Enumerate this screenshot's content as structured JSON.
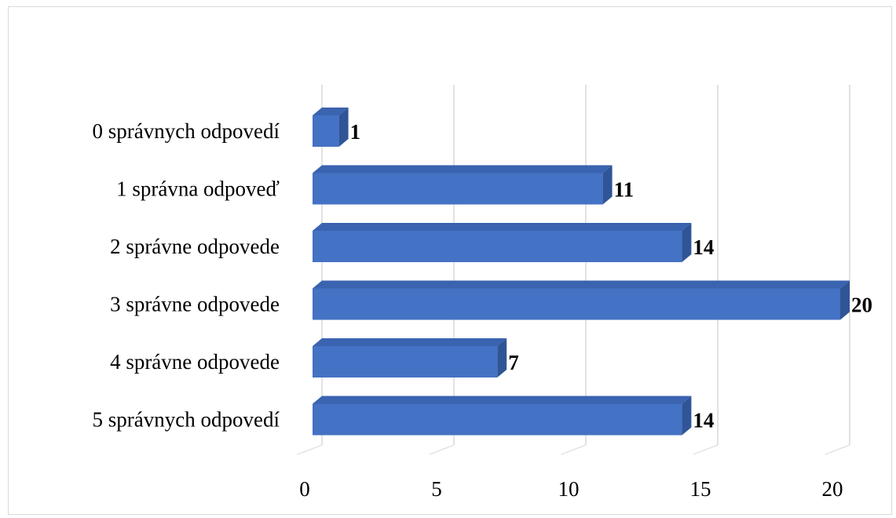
{
  "chart_data": {
    "type": "bar",
    "orientation": "horizontal",
    "style": "3d-clustered-bar",
    "categories": [
      "0 správnych odpovedí",
      "1 správna odpoveď",
      "2 správne odpovede",
      "3 správne odpovede",
      "4 správne odpovede",
      "5 správnych odpovedí"
    ],
    "values": [
      1,
      11,
      14,
      20,
      7,
      14
    ],
    "data_labels": [
      "1",
      "11",
      "14",
      "20",
      "7",
      "14"
    ],
    "title": "",
    "xlabel": "",
    "ylabel": "",
    "xlim": [
      0,
      20
    ],
    "x_ticks": [
      "0",
      "5",
      "10",
      "15",
      "20"
    ],
    "grid": "vertical",
    "legend": "none",
    "colors": {
      "bar_front": "#4472c4",
      "bar_top": "#3a63b0",
      "bar_side": "#2f5597",
      "grid": "#d9d9d9",
      "frame": "#d9d9d9"
    }
  }
}
